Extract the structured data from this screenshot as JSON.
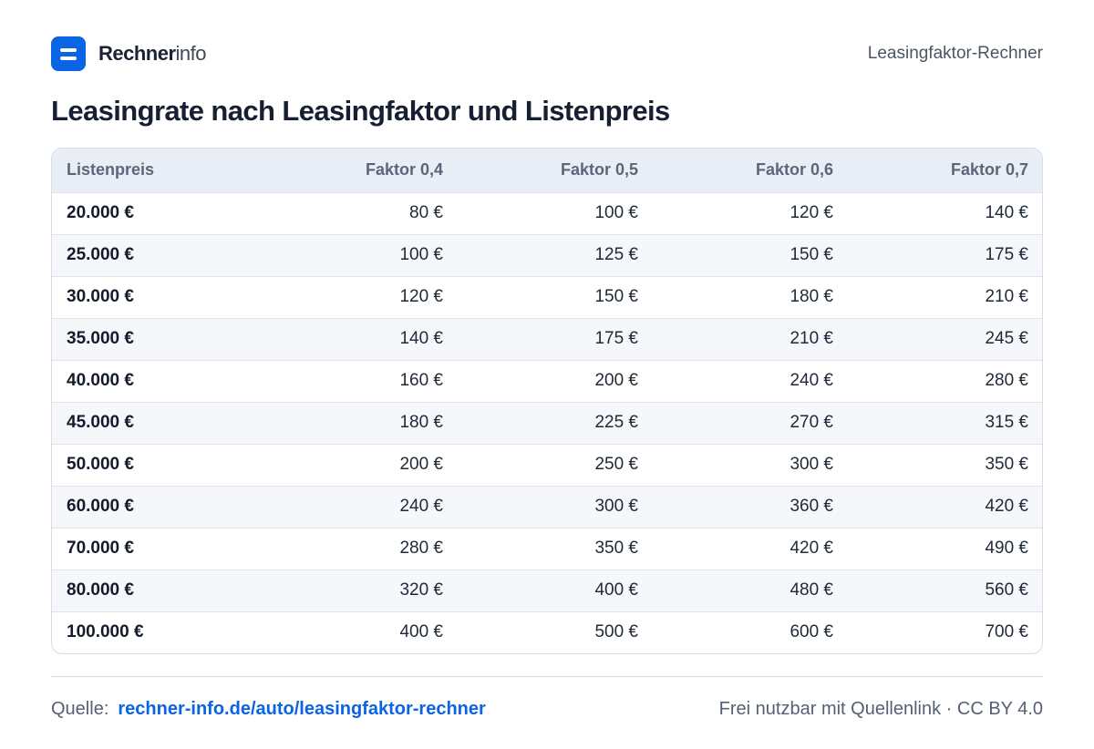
{
  "brand": {
    "name_bold": "Rechner",
    "name_light": "info"
  },
  "header": {
    "right_label": "Leasingfaktor-Rechner"
  },
  "title": "Leasingrate nach Leasingfaktor und Listenpreis",
  "table": {
    "columns": [
      "Listenpreis",
      "Faktor 0,4",
      "Faktor 0,5",
      "Faktor 0,6",
      "Faktor 0,7"
    ],
    "rows": [
      [
        "20.000 €",
        "80 €",
        "100 €",
        "120 €",
        "140 €"
      ],
      [
        "25.000 €",
        "100 €",
        "125 €",
        "150 €",
        "175 €"
      ],
      [
        "30.000 €",
        "120 €",
        "150 €",
        "180 €",
        "210 €"
      ],
      [
        "35.000 €",
        "140 €",
        "175 €",
        "210 €",
        "245 €"
      ],
      [
        "40.000 €",
        "160 €",
        "200 €",
        "240 €",
        "280 €"
      ],
      [
        "45.000 €",
        "180 €",
        "225 €",
        "270 €",
        "315 €"
      ],
      [
        "50.000 €",
        "200 €",
        "250 €",
        "300 €",
        "350 €"
      ],
      [
        "60.000 €",
        "240 €",
        "300 €",
        "360 €",
        "420 €"
      ],
      [
        "70.000 €",
        "280 €",
        "350 €",
        "420 €",
        "490 €"
      ],
      [
        "80.000 €",
        "320 €",
        "400 €",
        "480 €",
        "560 €"
      ],
      [
        "100.000 €",
        "400 €",
        "500 €",
        "600 €",
        "700 €"
      ]
    ]
  },
  "footer": {
    "source_label": "Quelle:",
    "source_link": "rechner-info.de/auto/leasingfaktor-rechner",
    "license": "Frei nutzbar mit Quellenlink · CC BY 4.0"
  },
  "colors": {
    "accent": "#0b63e5",
    "header_bg": "#e9eef6",
    "stripe_bg": "#f5f7fb"
  },
  "icons": {
    "logo": "equals-logo-icon"
  }
}
